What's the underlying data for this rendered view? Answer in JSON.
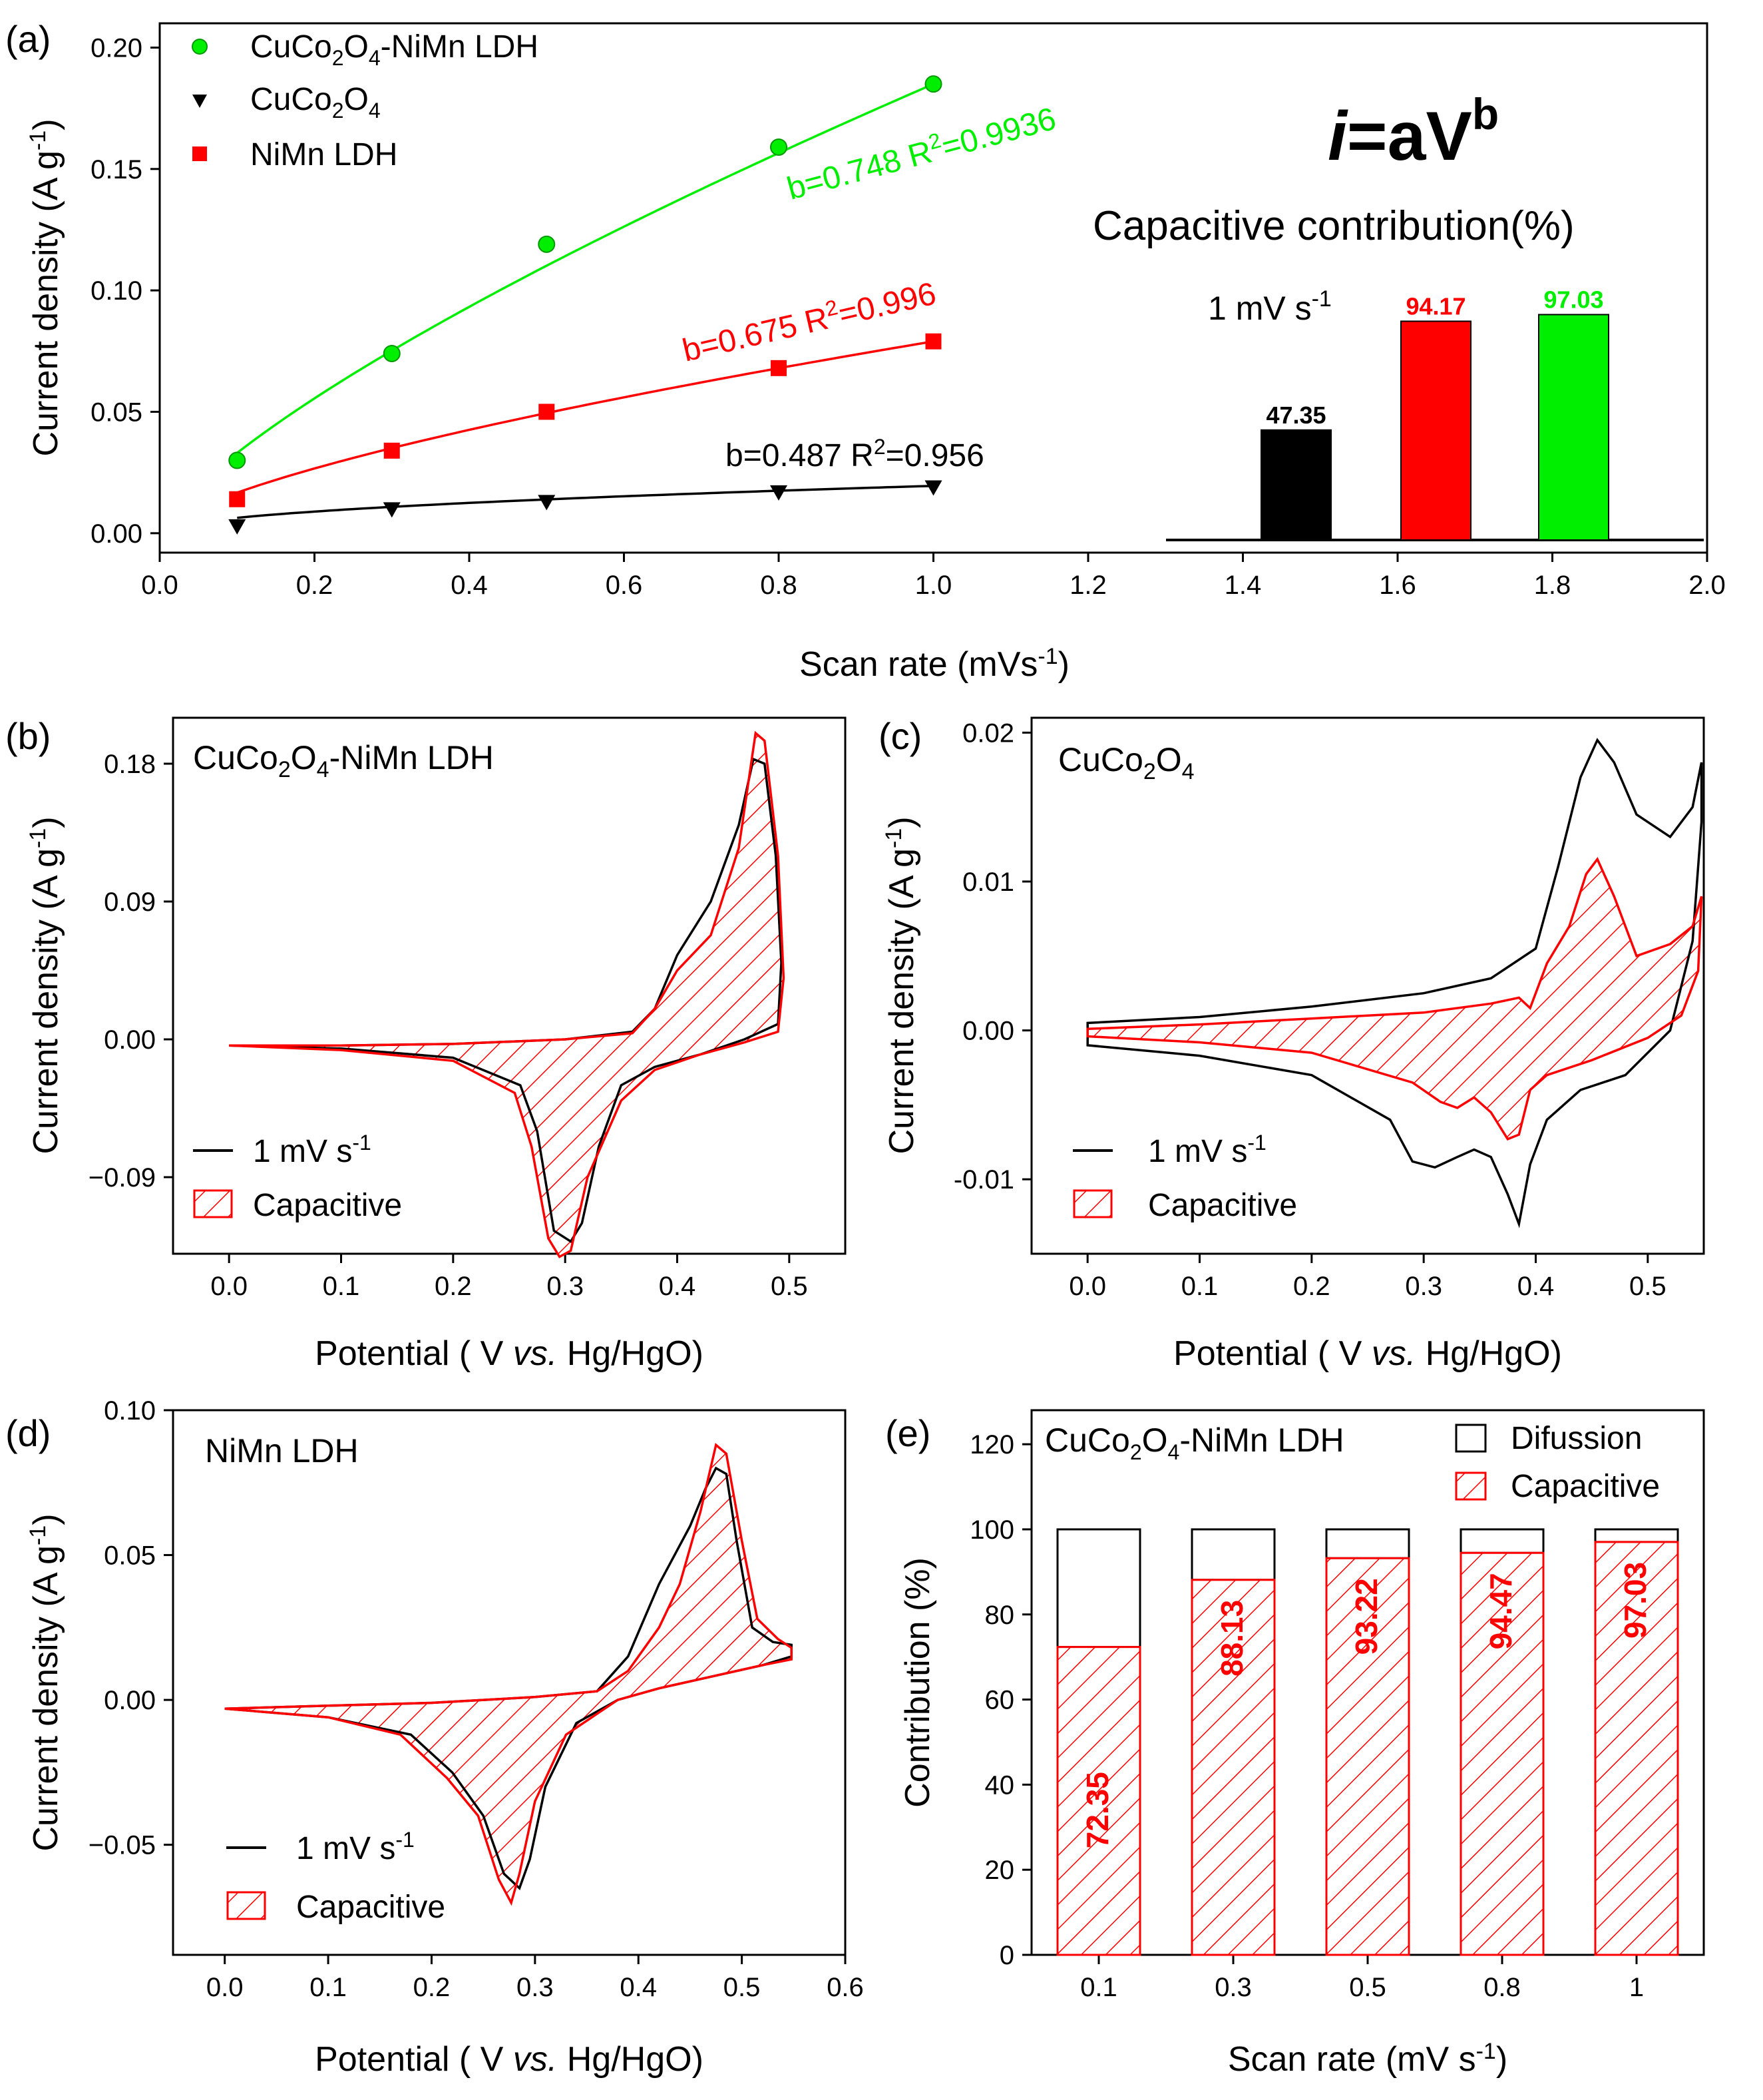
{
  "panels": {
    "a": {
      "label": "(a)",
      "chart_data": {
        "type": "scatter",
        "xlabel": "Scan rate (mVs",
        "xlabel_sup": "-1",
        "xlabel_end": ")",
        "ylabel": "Current density (A g",
        "ylabel_sup": "-1",
        "ylabel_end": ")",
        "xlim": [
          0,
          2.0
        ],
        "ylim": [
          -0.008,
          0.21
        ],
        "xticks": [
          "0.0",
          "0.2",
          "0.4",
          "0.6",
          "0.8",
          "1.0",
          "1.2",
          "1.4",
          "1.6",
          "1.8",
          "2.0"
        ],
        "yticks": [
          "0.00",
          "0.05",
          "0.10",
          "0.15",
          "0.20"
        ],
        "series": [
          {
            "name": "CuCo2O4-NiMn LDH",
            "color": "#00ee00",
            "marker": "circle",
            "x": [
              0.1,
              0.3,
              0.5,
              0.8,
              1.0
            ],
            "y": [
              0.03,
              0.074,
              0.119,
              0.159,
              0.185
            ],
            "fit_b": 0.748,
            "fit_a": 0.185
          },
          {
            "name": "CuCo2O4",
            "color": "#000000",
            "marker": "triangle-down",
            "x": [
              0.1,
              0.3,
              0.5,
              0.8,
              1.0
            ],
            "y": [
              0.003,
              0.01,
              0.013,
              0.017,
              0.019
            ],
            "fit_b": 0.487,
            "fit_a": 0.0195
          },
          {
            "name": "NiMn LDH",
            "color": "#ff0000",
            "marker": "square",
            "x": [
              0.1,
              0.3,
              0.5,
              0.8,
              1.0
            ],
            "y": [
              0.014,
              0.034,
              0.05,
              0.068,
              0.079
            ],
            "fit_b": 0.675,
            "fit_a": 0.079
          }
        ],
        "fit_labels": {
          "green": {
            "pre": "b=0.748 R",
            "sup": "2",
            "post": "=0.9936"
          },
          "red": {
            "pre": "b=0.675 R",
            "sup": "2",
            "post": "=0.996"
          },
          "black": {
            "pre": "b=0.487 R",
            "sup": "2",
            "post": "=0.956"
          }
        },
        "legend": {
          "green": {
            "pre": "CuCo",
            "s1": "2",
            "mid": "O",
            "s2": "4",
            "post": "-NiMn LDH"
          },
          "black": {
            "pre": "CuCo",
            "s1": "2",
            "mid": "O",
            "s2": "4"
          },
          "red": {
            "text": "NiMn LDH"
          }
        },
        "inset": {
          "formula_i": "i",
          "formula_rest": "=aV",
          "formula_sup": "b",
          "title": "Capacitive contribution(%)",
          "rate_label": "1 mV s",
          "rate_sup": "-1",
          "bars": [
            {
              "value": 47.35,
              "label": "47.35",
              "color": "#000000"
            },
            {
              "value": 94.17,
              "label": "94.17",
              "color": "#ff0000"
            },
            {
              "value": 97.03,
              "label": "97.03",
              "color": "#00ee00"
            }
          ]
        }
      }
    },
    "b": {
      "label": "(b)",
      "sample": {
        "pre": "CuCo",
        "s1": "2",
        "mid": "O",
        "s2": "4",
        "post": "-NiMn LDH"
      },
      "chart_data": {
        "type": "line",
        "xlim": [
          -0.05,
          0.55
        ],
        "ylim": [
          -0.14,
          0.21
        ],
        "xticks": [
          "0.0",
          "0.1",
          "0.2",
          "0.3",
          "0.4",
          "0.5"
        ],
        "yticks": [
          "0.18",
          "0.09",
          "0.00",
          "−0.09"
        ],
        "cv_black": [
          [
            0,
            -0.004
          ],
          [
            0.1,
            -0.004
          ],
          [
            0.2,
            -0.003
          ],
          [
            0.3,
            0
          ],
          [
            0.36,
            0.005
          ],
          [
            0.38,
            0.02
          ],
          [
            0.4,
            0.055
          ],
          [
            0.43,
            0.09
          ],
          [
            0.455,
            0.14
          ],
          [
            0.468,
            0.183
          ],
          [
            0.478,
            0.18
          ],
          [
            0.488,
            0.12
          ],
          [
            0.493,
            0.05
          ],
          [
            0.49,
            0.01
          ],
          [
            0.46,
            0
          ],
          [
            0.42,
            -0.01
          ],
          [
            0.38,
            -0.018
          ],
          [
            0.35,
            -0.03
          ],
          [
            0.33,
            -0.07
          ],
          [
            0.315,
            -0.12
          ],
          [
            0.305,
            -0.132
          ],
          [
            0.29,
            -0.125
          ],
          [
            0.275,
            -0.06
          ],
          [
            0.26,
            -0.03
          ],
          [
            0.2,
            -0.012
          ],
          [
            0.1,
            -0.006
          ],
          [
            0,
            -0.004
          ]
        ],
        "cv_red": [
          [
            0,
            -0.004
          ],
          [
            0.1,
            -0.004
          ],
          [
            0.2,
            -0.003
          ],
          [
            0.3,
            0
          ],
          [
            0.36,
            0.004
          ],
          [
            0.38,
            0.02
          ],
          [
            0.4,
            0.045
          ],
          [
            0.43,
            0.068
          ],
          [
            0.455,
            0.125
          ],
          [
            0.47,
            0.2
          ],
          [
            0.478,
            0.195
          ],
          [
            0.49,
            0.12
          ],
          [
            0.495,
            0.04
          ],
          [
            0.49,
            0.005
          ],
          [
            0.46,
            -0.002
          ],
          [
            0.42,
            -0.01
          ],
          [
            0.38,
            -0.02
          ],
          [
            0.35,
            -0.04
          ],
          [
            0.32,
            -0.09
          ],
          [
            0.305,
            -0.138
          ],
          [
            0.295,
            -0.142
          ],
          [
            0.285,
            -0.13
          ],
          [
            0.27,
            -0.07
          ],
          [
            0.255,
            -0.035
          ],
          [
            0.2,
            -0.014
          ],
          [
            0.1,
            -0.007
          ],
          [
            0,
            -0.004
          ]
        ]
      },
      "legend": {
        "line": "1 mV s",
        "line_sup": "-1",
        "hatch": "Capacitive"
      }
    },
    "c": {
      "label": "(c)",
      "sample": {
        "pre": "CuCo",
        "s1": "2",
        "mid": "O",
        "s2": "4",
        "post": ""
      },
      "chart_data": {
        "type": "line",
        "xlim": [
          -0.05,
          0.55
        ],
        "ylim": [
          -0.015,
          0.021
        ],
        "xticks": [
          "0.0",
          "0.1",
          "0.2",
          "0.3",
          "0.4",
          "0.5"
        ],
        "yticks": [
          "0.02",
          "0.01",
          "0.00",
          "-0.01"
        ],
        "cv_black": [
          [
            0,
            0.0005
          ],
          [
            0.1,
            0.0009
          ],
          [
            0.2,
            0.0016
          ],
          [
            0.3,
            0.0025
          ],
          [
            0.36,
            0.0035
          ],
          [
            0.4,
            0.0055
          ],
          [
            0.42,
            0.011
          ],
          [
            0.44,
            0.017
          ],
          [
            0.455,
            0.0195
          ],
          [
            0.47,
            0.018
          ],
          [
            0.49,
            0.0145
          ],
          [
            0.52,
            0.013
          ],
          [
            0.54,
            0.015
          ],
          [
            0.548,
            0.018
          ],
          [
            0.548,
            0.014
          ],
          [
            0.54,
            0.006
          ],
          [
            0.52,
            0
          ],
          [
            0.48,
            -0.003
          ],
          [
            0.44,
            -0.004
          ],
          [
            0.41,
            -0.006
          ],
          [
            0.395,
            -0.009
          ],
          [
            0.385,
            -0.013
          ],
          [
            0.375,
            -0.011
          ],
          [
            0.36,
            -0.0085
          ],
          [
            0.345,
            -0.008
          ],
          [
            0.33,
            -0.0085
          ],
          [
            0.31,
            -0.0092
          ],
          [
            0.29,
            -0.0088
          ],
          [
            0.27,
            -0.006
          ],
          [
            0.2,
            -0.003
          ],
          [
            0.1,
            -0.0017
          ],
          [
            0,
            -0.001
          ]
        ],
        "cv_red": [
          [
            0,
            0.0001
          ],
          [
            0.1,
            0.0004
          ],
          [
            0.2,
            0.0008
          ],
          [
            0.3,
            0.0012
          ],
          [
            0.36,
            0.0018
          ],
          [
            0.385,
            0.0022
          ],
          [
            0.395,
            0.0015
          ],
          [
            0.41,
            0.0045
          ],
          [
            0.43,
            0.007
          ],
          [
            0.445,
            0.0105
          ],
          [
            0.455,
            0.0115
          ],
          [
            0.47,
            0.009
          ],
          [
            0.49,
            0.005
          ],
          [
            0.52,
            0.0058
          ],
          [
            0.54,
            0.007
          ],
          [
            0.548,
            0.009
          ],
          [
            0.545,
            0.004
          ],
          [
            0.53,
            0.001
          ],
          [
            0.5,
            -0.0005
          ],
          [
            0.45,
            -0.002
          ],
          [
            0.41,
            -0.003
          ],
          [
            0.395,
            -0.004
          ],
          [
            0.385,
            -0.007
          ],
          [
            0.375,
            -0.0073
          ],
          [
            0.36,
            -0.0055
          ],
          [
            0.345,
            -0.0045
          ],
          [
            0.33,
            -0.0052
          ],
          [
            0.315,
            -0.0048
          ],
          [
            0.29,
            -0.0035
          ],
          [
            0.2,
            -0.0015
          ],
          [
            0.1,
            -0.0008
          ],
          [
            0,
            -0.0004
          ]
        ]
      },
      "legend": {
        "line": "1 mV s",
        "line_sup": "-1",
        "hatch": "Capacitive"
      }
    },
    "d": {
      "label": "(d)",
      "sample": {
        "pre": "NiMn LDH",
        "s1": "",
        "mid": "",
        "s2": "",
        "post": ""
      },
      "chart_data": {
        "type": "line",
        "xlim": [
          -0.05,
          0.6
        ],
        "ylim": [
          -0.088,
          0.1
        ],
        "xticks": [
          "0.0",
          "0.1",
          "0.2",
          "0.3",
          "0.4",
          "0.5",
          "0.6"
        ],
        "yticks": [
          "0.10",
          "0.05",
          "0.00",
          "−0.05"
        ],
        "cv_black": [
          [
            0,
            -0.003
          ],
          [
            0.1,
            -0.002
          ],
          [
            0.2,
            -0.001
          ],
          [
            0.3,
            0.001
          ],
          [
            0.36,
            0.003
          ],
          [
            0.39,
            0.015
          ],
          [
            0.42,
            0.04
          ],
          [
            0.45,
            0.06
          ],
          [
            0.465,
            0.073
          ],
          [
            0.475,
            0.08
          ],
          [
            0.485,
            0.078
          ],
          [
            0.495,
            0.055
          ],
          [
            0.51,
            0.025
          ],
          [
            0.53,
            0.02
          ],
          [
            0.548,
            0.019
          ],
          [
            0.548,
            0.015
          ],
          [
            0.52,
            0.012
          ],
          [
            0.47,
            0.008
          ],
          [
            0.42,
            0.004
          ],
          [
            0.38,
            0
          ],
          [
            0.34,
            -0.008
          ],
          [
            0.31,
            -0.03
          ],
          [
            0.295,
            -0.055
          ],
          [
            0.285,
            -0.065
          ],
          [
            0.27,
            -0.06
          ],
          [
            0.25,
            -0.04
          ],
          [
            0.22,
            -0.025
          ],
          [
            0.18,
            -0.012
          ],
          [
            0.1,
            -0.006
          ],
          [
            0,
            -0.003
          ]
        ],
        "cv_red": [
          [
            0,
            -0.003
          ],
          [
            0.1,
            -0.002
          ],
          [
            0.2,
            -0.001
          ],
          [
            0.3,
            0.001
          ],
          [
            0.36,
            0.003
          ],
          [
            0.39,
            0.01
          ],
          [
            0.42,
            0.025
          ],
          [
            0.44,
            0.04
          ],
          [
            0.46,
            0.065
          ],
          [
            0.475,
            0.088
          ],
          [
            0.485,
            0.085
          ],
          [
            0.5,
            0.055
          ],
          [
            0.515,
            0.028
          ],
          [
            0.535,
            0.021
          ],
          [
            0.548,
            0.018
          ],
          [
            0.548,
            0.014
          ],
          [
            0.52,
            0.012
          ],
          [
            0.47,
            0.008
          ],
          [
            0.42,
            0.004
          ],
          [
            0.38,
            0
          ],
          [
            0.33,
            -0.012
          ],
          [
            0.3,
            -0.035
          ],
          [
            0.285,
            -0.06
          ],
          [
            0.277,
            -0.07
          ],
          [
            0.265,
            -0.062
          ],
          [
            0.245,
            -0.04
          ],
          [
            0.215,
            -0.027
          ],
          [
            0.17,
            -0.012
          ],
          [
            0.1,
            -0.006
          ],
          [
            0,
            -0.003
          ]
        ]
      },
      "legend": {
        "line": "1 mV s",
        "line_sup": "-1",
        "hatch": "Capacitive"
      }
    },
    "e": {
      "label": "(e)",
      "sample": {
        "pre": "CuCo",
        "s1": "2",
        "mid": "O",
        "s2": "4",
        "post": "-NiMn LDH"
      },
      "chart_data": {
        "type": "bar",
        "stacked": true,
        "categories": [
          "0.1",
          "0.3",
          "0.5",
          "0.8",
          "1"
        ],
        "series": [
          {
            "name": "Capacitive",
            "values": [
              72.35,
              88.13,
              93.22,
              94.47,
              97.03
            ],
            "labels": [
              "72.35",
              "88.13",
              "93.22",
              "94.47",
              "97.03"
            ]
          },
          {
            "name": "Difussion",
            "values": [
              27.65,
              11.87,
              6.78,
              5.53,
              2.97
            ]
          }
        ],
        "xlabel": "Scan rate (mV s",
        "xlabel_sup": "-1",
        "xlabel_end": ")",
        "ylabel": "Contribution (%)",
        "ylim": [
          0,
          128
        ],
        "yticks": [
          "0",
          "20",
          "40",
          "60",
          "80",
          "100",
          "120"
        ]
      },
      "legend": {
        "diffusion": "Difussion",
        "capacitive": "Capacitive"
      }
    },
    "cv_common": {
      "xlabel_pre": "Potential ( V ",
      "xlabel_it": "vs.",
      "xlabel_post": " Hg/HgO)",
      "ylabel": "Current density (A g",
      "ylabel_sup": "-1",
      "ylabel_end": ")"
    }
  }
}
